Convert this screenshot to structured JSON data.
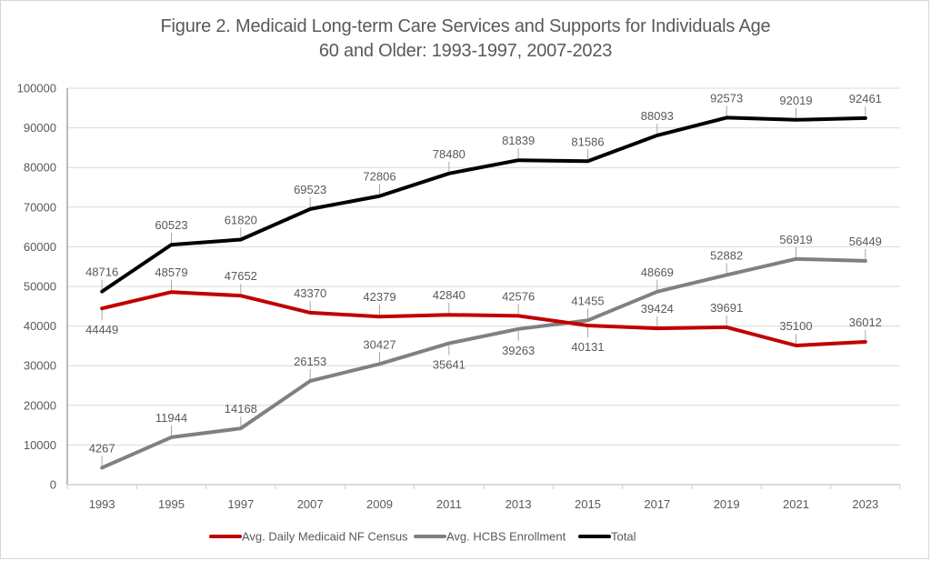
{
  "chart_data": {
    "type": "line",
    "title_line1": "Figure 2. Medicaid Long-term Care Services and Supports for Individuals Age",
    "title_line2": "60 and Older: 1993-1997, 2007-2023",
    "xlabel": "",
    "ylabel": "",
    "categories": [
      "1993",
      "1995",
      "1997",
      "2007",
      "2009",
      "2011",
      "2013",
      "2015",
      "2017",
      "2019",
      "2021",
      "2023"
    ],
    "ylim": [
      0,
      100000
    ],
    "yticks": [
      0,
      10000,
      20000,
      30000,
      40000,
      50000,
      60000,
      70000,
      80000,
      90000,
      100000
    ],
    "ytick_labels": [
      "0",
      "10000",
      "20000",
      "30000",
      "40000",
      "50000",
      "60000",
      "70000",
      "80000",
      "90000",
      "100000"
    ],
    "grid": true,
    "legend_position": "bottom",
    "series": [
      {
        "name": "Avg. Daily Medicaid NF Census",
        "color": "#c00000",
        "values": [
          44449,
          48579,
          47652,
          43370,
          42379,
          42840,
          42576,
          40131,
          39424,
          39691,
          35100,
          36012
        ],
        "label_positions": [
          "below",
          "above",
          "above",
          "above",
          "above",
          "above",
          "above",
          "below",
          "above",
          "above",
          "above",
          "above"
        ]
      },
      {
        "name": "Avg.  HCBS Enrollment",
        "color": "#808080",
        "values": [
          4267,
          11944,
          14168,
          26153,
          30427,
          35641,
          39263,
          41455,
          48669,
          52882,
          56919,
          56449
        ],
        "label_positions": [
          "above",
          "above",
          "above",
          "above",
          "above",
          "below",
          "below",
          "above",
          "above",
          "above",
          "above",
          "above"
        ]
      },
      {
        "name": "Total",
        "color": "#000000",
        "values": [
          48716,
          60523,
          61820,
          69523,
          72806,
          78480,
          81839,
          81586,
          88093,
          92573,
          92019,
          92461
        ],
        "label_positions": [
          "above",
          "above",
          "above",
          "above",
          "above",
          "above",
          "above",
          "above",
          "above",
          "above",
          "above",
          "above"
        ]
      }
    ]
  }
}
